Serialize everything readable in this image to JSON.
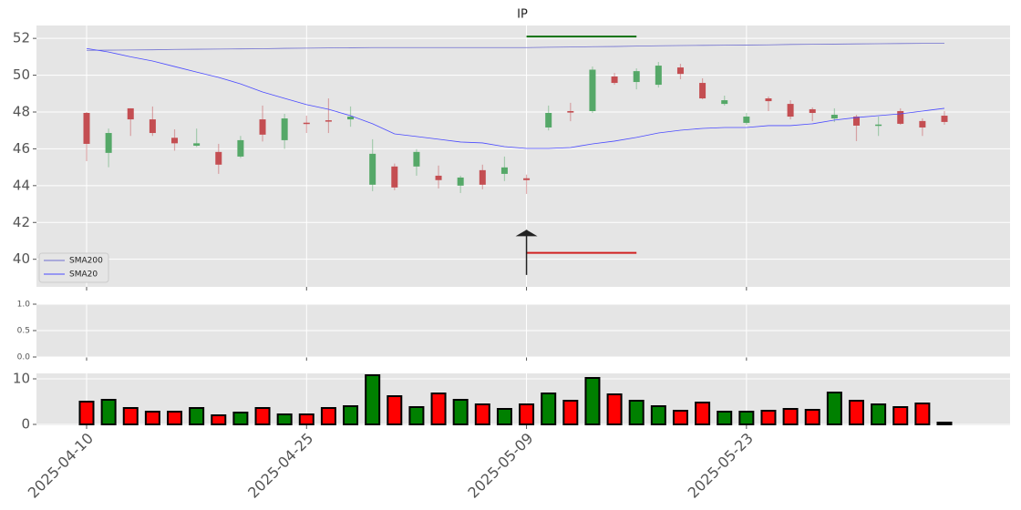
{
  "chart_data": [
    {
      "type": "candlestick",
      "title": "IP",
      "open": [
        47.95,
        45.78,
        48.2,
        47.6,
        46.6,
        46.17,
        45.83,
        45.58,
        47.6,
        46.47,
        47.42,
        47.55,
        47.6,
        44.05,
        45.04,
        45.04,
        44.54,
        44.0,
        44.84,
        44.64,
        44.4,
        47.16,
        48.05,
        48.05,
        49.93,
        49.63,
        49.48,
        50.42,
        49.58,
        48.44,
        47.41,
        48.74,
        48.44,
        48.15,
        47.65,
        47.75,
        47.28,
        48.05,
        47.51,
        47.8
      ],
      "high": [
        48.0,
        47.1,
        48.2,
        48.3,
        47.06,
        47.1,
        46.27,
        46.7,
        48.35,
        47.9,
        47.8,
        48.74,
        48.3,
        46.52,
        45.2,
        45.98,
        45.09,
        44.54,
        45.14,
        45.58,
        44.6,
        48.35,
        48.5,
        50.47,
        50.12,
        50.37,
        50.72,
        50.62,
        49.83,
        48.89,
        47.95,
        48.84,
        48.64,
        48.25,
        48.2,
        47.85,
        47.75,
        48.2,
        47.65,
        48.05
      ],
      "low": [
        45.33,
        45.0,
        46.7,
        46.7,
        45.9,
        46.1,
        44.64,
        45.5,
        46.4,
        46.0,
        46.86,
        46.86,
        47.2,
        43.7,
        43.75,
        44.54,
        43.85,
        43.6,
        43.8,
        44.25,
        43.55,
        47.0,
        47.5,
        47.95,
        49.48,
        49.23,
        49.33,
        49.78,
        48.69,
        48.35,
        47.3,
        48.05,
        47.6,
        47.5,
        47.46,
        46.42,
        46.7,
        47.31,
        46.7,
        47.31
      ],
      "close": [
        46.27,
        46.86,
        47.6,
        46.86,
        46.3,
        46.3,
        45.14,
        46.47,
        46.77,
        47.65,
        47.38,
        47.5,
        47.75,
        45.73,
        43.9,
        45.83,
        44.3,
        44.44,
        44.05,
        44.99,
        44.3,
        47.95,
        47.97,
        50.3,
        49.58,
        50.22,
        50.52,
        50.07,
        48.74,
        48.64,
        47.75,
        48.59,
        47.75,
        47.95,
        47.85,
        47.26,
        47.32,
        47.36,
        47.16,
        47.46
      ],
      "up_color": "#55a868",
      "down_color": "#c44e52",
      "series": [
        {
          "name": "SMA200",
          "color": "#7070d0",
          "values": [
            51.35,
            51.36,
            51.37,
            51.38,
            51.4,
            51.41,
            51.42,
            51.43,
            51.44,
            51.46,
            51.47,
            51.48,
            51.49,
            51.5,
            51.5,
            51.5,
            51.5,
            51.5,
            51.5,
            51.5,
            51.5,
            51.52,
            51.53,
            51.55,
            51.56,
            51.58,
            51.6,
            51.61,
            51.62,
            51.63,
            51.64,
            51.65,
            51.67,
            51.68,
            51.69,
            51.7,
            51.71,
            51.72,
            51.73,
            51.73
          ]
        },
        {
          "name": "SMA20",
          "color": "#4a4aff",
          "values": [
            51.45,
            51.26,
            51.0,
            50.77,
            50.47,
            50.17,
            49.88,
            49.53,
            49.09,
            48.74,
            48.4,
            48.15,
            47.8,
            47.36,
            46.81,
            46.67,
            46.52,
            46.37,
            46.32,
            46.12,
            46.02,
            46.02,
            46.07,
            46.27,
            46.42,
            46.62,
            46.86,
            47.01,
            47.11,
            47.16,
            47.16,
            47.26,
            47.26,
            47.36,
            47.56,
            47.7,
            47.8,
            47.9,
            48.05,
            48.2
          ]
        }
      ],
      "hlines": [
        {
          "value": 52.1,
          "color": "#107010",
          "from": 20,
          "to": 25
        },
        {
          "value": 40.35,
          "color": "#d02020",
          "from": 20,
          "to": 25
        }
      ],
      "arrow": {
        "x": 20,
        "tail": 39.15,
        "head": 41.6,
        "color": "#222222"
      },
      "ylim": [
        38.5,
        52.7
      ],
      "yticks": [
        40,
        42,
        44,
        46,
        48,
        50,
        52
      ],
      "grid": true,
      "legend": "lower left"
    },
    {
      "type": "blank",
      "ylim": [
        0,
        1
      ],
      "yticks": [
        {
          "value": 0,
          "label": "0.0"
        },
        {
          "value": 0.5,
          "label": "0.5"
        },
        {
          "value": 1,
          "label": "1.0"
        }
      ],
      "grid": true
    },
    {
      "type": "volume",
      "categories": [
        "2025-04-10",
        null,
        null,
        null,
        null,
        null,
        null,
        null,
        null,
        null,
        "2025-04-25",
        null,
        null,
        null,
        null,
        null,
        null,
        null,
        null,
        null,
        "2025-05-09",
        null,
        null,
        null,
        null,
        null,
        null,
        null,
        null,
        null,
        "2025-05-23",
        null,
        null,
        null,
        null,
        null,
        null,
        null,
        null,
        null
      ],
      "values": [
        5.0,
        5.4,
        3.6,
        2.8,
        2.8,
        3.6,
        2.0,
        2.6,
        3.6,
        2.2,
        2.2,
        3.6,
        4.0,
        10.8,
        6.2,
        3.8,
        6.8,
        5.4,
        4.4,
        3.4,
        4.4,
        6.8,
        5.2,
        10.2,
        6.6,
        5.2,
        4.0,
        3.0,
        4.8,
        2.8,
        2.8,
        3.0,
        3.4,
        3.2,
        7.0,
        5.2,
        4.4,
        3.8,
        4.6,
        0.4
      ],
      "up_color": "#008000",
      "down_color": "#ff0000",
      "ylim": [
        -0.2,
        11.2
      ],
      "yticks": [
        0,
        10
      ],
      "grid": true
    }
  ]
}
